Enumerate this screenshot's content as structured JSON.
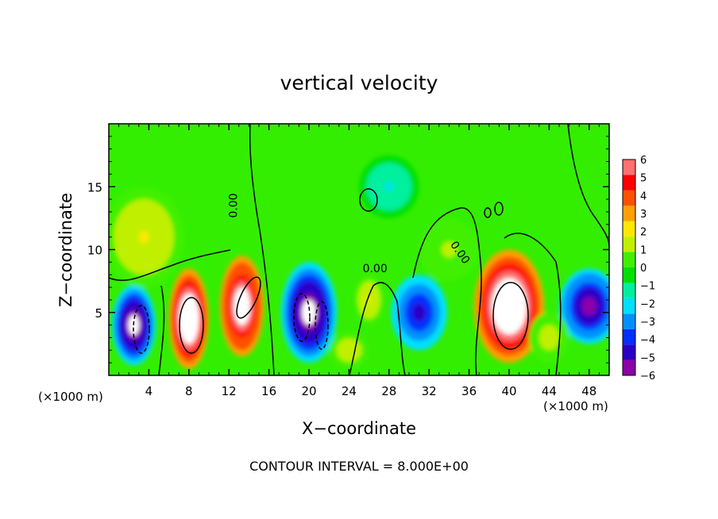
{
  "chart_data": {
    "type": "heatmap",
    "title": "vertical velocity",
    "xlabel": "X−coordinate",
    "ylabel": "Z−coordinate",
    "x_unit_left": "(×1000 m)",
    "x_unit_right": "(×1000 m)",
    "footer": "CONTOUR INTERVAL = 8.000E+00",
    "xlim": [
      0,
      50
    ],
    "ylim": [
      0,
      20
    ],
    "x_ticks": [
      4,
      8,
      12,
      16,
      20,
      24,
      28,
      32,
      36,
      40,
      44,
      48
    ],
    "x_tick_labels": [
      "4",
      "8",
      "12",
      "16",
      "20",
      "24",
      "28",
      "32",
      "36",
      "40",
      "44",
      "48"
    ],
    "y_ticks": [
      5,
      10,
      15
    ],
    "y_tick_labels": [
      "5",
      "10",
      "15"
    ],
    "colorbar": {
      "range": [
        -6,
        6
      ],
      "tick_labels": [
        "6",
        "5",
        "4",
        "3",
        "2",
        "1",
        "0",
        "−1",
        "−2",
        "−3",
        "−4",
        "−5",
        "−6"
      ],
      "colors": [
        "#8b00a8",
        "#2a00c8",
        "#0030ff",
        "#0090ff",
        "#00e0ff",
        "#00f0a0",
        "#00e000",
        "#40f000",
        "#c0f000",
        "#ffe800",
        "#ffa000",
        "#ff5000",
        "#ff0000",
        "#ff7070"
      ]
    },
    "contour_labels": [
      {
        "text": "0.00",
        "x": 12.8,
        "y": 13.5,
        "angle": -90
      },
      {
        "text": "0.00",
        "x": 26.6,
        "y": 8.2,
        "angle": 0
      },
      {
        "text": "0.00",
        "x": 34.8,
        "y": 9.6,
        "angle": 55
      }
    ],
    "cells": [
      {
        "x": 2.5,
        "y": 4,
        "rx": 2.2,
        "ry": 3.2,
        "v": -7
      },
      {
        "x": 8.0,
        "y": 4.5,
        "rx": 2.0,
        "ry": 4.0,
        "v": 9
      },
      {
        "x": 13.3,
        "y": 5.5,
        "rx": 2.2,
        "ry": 4.0,
        "v": 8
      },
      {
        "x": 20.0,
        "y": 5.0,
        "rx": 2.8,
        "ry": 4.0,
        "v": -7
      },
      {
        "x": 31.0,
        "y": 5.0,
        "rx": 2.8,
        "ry": 3.0,
        "v": -5
      },
      {
        "x": 40.0,
        "y": 5.5,
        "rx": 3.5,
        "ry": 4.5,
        "v": 9
      },
      {
        "x": 48.0,
        "y": 5.5,
        "rx": 3.0,
        "ry": 3.0,
        "v": -6
      },
      {
        "x": 3.5,
        "y": 11,
        "rx": 4.0,
        "ry": 4.0,
        "v": 1.8
      },
      {
        "x": 26.0,
        "y": 6,
        "rx": 1.5,
        "ry": 2.0,
        "v": 1.8
      },
      {
        "x": 34.0,
        "y": 10,
        "rx": 3.0,
        "ry": 2.5,
        "v": 1.0
      },
      {
        "x": 24.0,
        "y": 2,
        "rx": 2.0,
        "ry": 1.5,
        "v": 1.5
      },
      {
        "x": 28.0,
        "y": 15,
        "rx": 3.0,
        "ry": 2.5,
        "v": -1.8
      },
      {
        "x": 44.0,
        "y": 3,
        "rx": 2.0,
        "ry": 2.0,
        "v": 1.2
      }
    ]
  }
}
